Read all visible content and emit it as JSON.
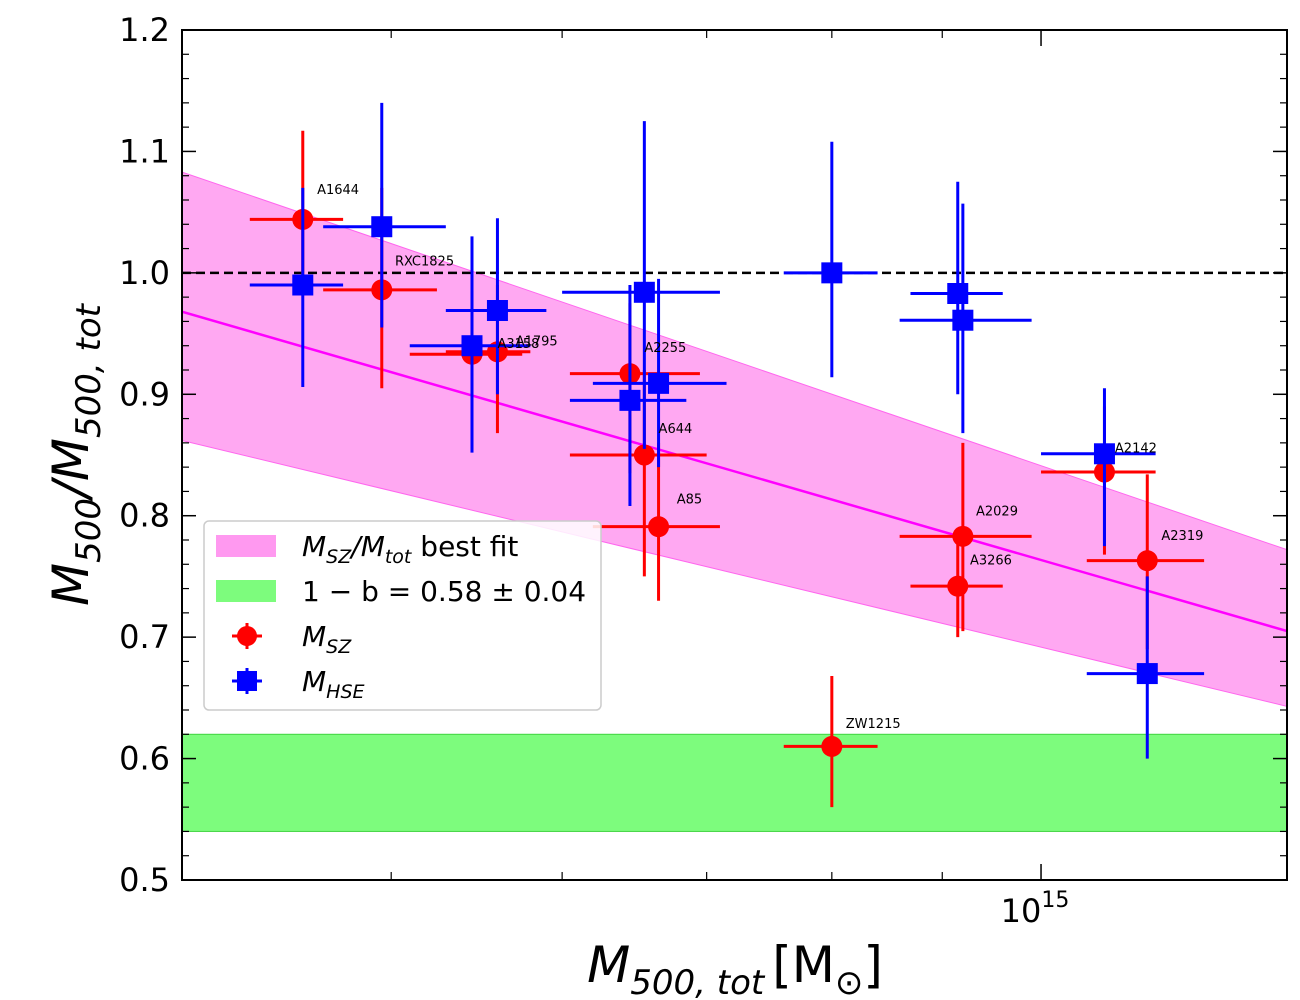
{
  "chart_data": {
    "type": "scatter",
    "xscale": "log",
    "xlim": [
      400000000000000.0,
      1300000000000000.0
    ],
    "ylim": [
      0.5,
      1.2
    ],
    "xlabel": {
      "main": "M",
      "sub": "500, tot",
      "unit_open": "[M",
      "unit_sym": "⊙",
      "unit_close": "]"
    },
    "ylabel": {
      "m1": "M",
      "s1": "500",
      "slash": "/M",
      "s2": "500, tot"
    },
    "y_ticks": [
      {
        "value": 0.5,
        "label": "0.5"
      },
      {
        "value": 0.6,
        "label": "0.6"
      },
      {
        "value": 0.7,
        "label": "0.7"
      },
      {
        "value": 0.8,
        "label": "0.8"
      },
      {
        "value": 0.9,
        "label": "0.9"
      },
      {
        "value": 1.0,
        "label": "1.0"
      },
      {
        "value": 1.1,
        "label": "1.1"
      },
      {
        "value": 1.2,
        "label": "1.2"
      }
    ],
    "x_tick": {
      "value": 1000000000000000.0,
      "base": "10",
      "exp": "15"
    },
    "reference_line": {
      "y": 1.0,
      "style": "dashed",
      "color": "#000000"
    },
    "bias_band": {
      "y_low": 0.54,
      "y_high": 0.62,
      "color": "#7dfc7d"
    },
    "fit": {
      "color": "#ff00ff",
      "band_color": "#ff99f0",
      "center": [
        [
          400000000000000.0,
          0.968
        ],
        [
          1300000000000000.0,
          0.705
        ]
      ],
      "upper": [
        [
          400000000000000.0,
          1.083
        ],
        [
          1300000000000000.0,
          0.772
        ]
      ],
      "lower": [
        [
          400000000000000.0,
          0.862
        ],
        [
          1300000000000000.0,
          0.643
        ]
      ]
    },
    "series": [
      {
        "name": "M_SZ",
        "color": "#ff0000",
        "marker": "circle",
        "points": [
          {
            "x": 455000000000000.0,
            "y": 1.044,
            "xlo": 430000000000000.0,
            "xhi": 475000000000000.0,
            "ylo": 0.985,
            "yhi": 1.117
          },
          {
            "x": 495000000000000.0,
            "y": 0.986,
            "xlo": 465000000000000.0,
            "xhi": 525000000000000.0,
            "ylo": 0.905,
            "yhi": 1.07
          },
          {
            "x": 545000000000000.0,
            "y": 0.933,
            "xlo": 510000000000000.0,
            "xhi": 575000000000000.0,
            "ylo": 0.855,
            "yhi": 0.985
          },
          {
            "x": 560000000000000.0,
            "y": 0.935,
            "xlo": 530000000000000.0,
            "xhi": 580000000000000.0,
            "ylo": 0.868,
            "yhi": 0.99
          },
          {
            "x": 645000000000000.0,
            "y": 0.917,
            "xlo": 605000000000000.0,
            "xhi": 695000000000000.0,
            "ylo": 0.835,
            "yhi": 0.975
          },
          {
            "x": 655000000000000.0,
            "y": 0.85,
            "xlo": 605000000000000.0,
            "xhi": 700000000000000.0,
            "ylo": 0.75,
            "yhi": 0.92
          },
          {
            "x": 665000000000000.0,
            "y": 0.791,
            "xlo": 620000000000000.0,
            "xhi": 710000000000000.0,
            "ylo": 0.73,
            "yhi": 0.86
          },
          {
            "x": 800000000000000.0,
            "y": 0.61,
            "xlo": 760000000000000.0,
            "xhi": 840000000000000.0,
            "ylo": 0.56,
            "yhi": 0.668
          },
          {
            "x": 920000000000000.0,
            "y": 0.783,
            "xlo": 860000000000000.0,
            "xhi": 990000000000000.0,
            "ylo": 0.705,
            "yhi": 0.86
          },
          {
            "x": 915000000000000.0,
            "y": 0.742,
            "xlo": 870000000000000.0,
            "xhi": 960000000000000.0,
            "ylo": 0.7,
            "yhi": 0.78
          },
          {
            "x": 1070000000000000.0,
            "y": 0.836,
            "xlo": 1000000000000000.0,
            "xhi": 1130000000000000.0,
            "ylo": 0.768,
            "yhi": 0.89
          },
          {
            "x": 1120000000000000.0,
            "y": 0.763,
            "xlo": 1050000000000000.0,
            "xhi": 1190000000000000.0,
            "ylo": 0.69,
            "yhi": 0.834
          }
        ]
      },
      {
        "name": "M_HSE",
        "color": "#0000ff",
        "marker": "square",
        "points": [
          {
            "x": 455000000000000.0,
            "y": 0.99,
            "xlo": 430000000000000.0,
            "xhi": 475000000000000.0,
            "ylo": 0.906,
            "yhi": 1.07
          },
          {
            "x": 495000000000000.0,
            "y": 1.038,
            "xlo": 465000000000000.0,
            "xhi": 530000000000000.0,
            "ylo": 0.955,
            "yhi": 1.14
          },
          {
            "x": 545000000000000.0,
            "y": 0.94,
            "xlo": 510000000000000.0,
            "xhi": 580000000000000.0,
            "ylo": 0.852,
            "yhi": 1.03
          },
          {
            "x": 560000000000000.0,
            "y": 0.969,
            "xlo": 530000000000000.0,
            "xhi": 590000000000000.0,
            "ylo": 0.9,
            "yhi": 1.045
          },
          {
            "x": 655000000000000.0,
            "y": 0.984,
            "xlo": 600000000000000.0,
            "xhi": 710000000000000.0,
            "ylo": 0.855,
            "yhi": 1.125
          },
          {
            "x": 645000000000000.0,
            "y": 0.895,
            "xlo": 605000000000000.0,
            "xhi": 685000000000000.0,
            "ylo": 0.808,
            "yhi": 0.99
          },
          {
            "x": 665000000000000.0,
            "y": 0.909,
            "xlo": 620000000000000.0,
            "xhi": 715000000000000.0,
            "ylo": 0.84,
            "yhi": 0.995
          },
          {
            "x": 800000000000000.0,
            "y": 1.0,
            "xlo": 760000000000000.0,
            "xhi": 840000000000000.0,
            "ylo": 0.914,
            "yhi": 1.108
          },
          {
            "x": 915000000000000.0,
            "y": 0.983,
            "xlo": 870000000000000.0,
            "xhi": 960000000000000.0,
            "ylo": 0.9,
            "yhi": 1.075
          },
          {
            "x": 920000000000000.0,
            "y": 0.961,
            "xlo": 860000000000000.0,
            "xhi": 990000000000000.0,
            "ylo": 0.868,
            "yhi": 1.057
          },
          {
            "x": 1070000000000000.0,
            "y": 0.851,
            "xlo": 1000000000000000.0,
            "xhi": 1130000000000000.0,
            "ylo": 0.775,
            "yhi": 0.905
          },
          {
            "x": 1120000000000000.0,
            "y": 0.67,
            "xlo": 1050000000000000.0,
            "xhi": 1190000000000000.0,
            "ylo": 0.6,
            "yhi": 0.75
          }
        ]
      }
    ],
    "annotations": [
      {
        "text": "A1644",
        "x": 462000000000000.0,
        "y": 1.065
      },
      {
        "text": "RXC1825",
        "x": 502000000000000.0,
        "y": 1.006
      },
      {
        "text": "A3158",
        "x": 560000000000000.0,
        "y": 0.938
      },
      {
        "text": "A1795",
        "x": 571000000000000.0,
        "y": 0.94
      },
      {
        "text": "A2255",
        "x": 655000000000000.0,
        "y": 0.935
      },
      {
        "text": "A644",
        "x": 665000000000000.0,
        "y": 0.868
      },
      {
        "text": "A85",
        "x": 678000000000000.0,
        "y": 0.81
      },
      {
        "text": "ZW1215",
        "x": 812000000000000.0,
        "y": 0.625
      },
      {
        "text": "A2029",
        "x": 933000000000000.0,
        "y": 0.8
      },
      {
        "text": "A3266",
        "x": 927000000000000.0,
        "y": 0.76
      },
      {
        "text": "A2142",
        "x": 1082000000000000.0,
        "y": 0.852
      },
      {
        "text": "A2319",
        "x": 1137000000000000.0,
        "y": 0.78
      }
    ],
    "legend": {
      "placement": "center-left",
      "items": [
        {
          "key": "fit",
          "swatch_color": "#ff99f0",
          "kind": "patch",
          "m": "M",
          "sub1": "SZ",
          "sep": "/",
          "m2": "M",
          "sub2": "tot",
          "suffix": " best fit"
        },
        {
          "key": "bias",
          "swatch_color": "#7dfc7d",
          "kind": "patch",
          "text": "1 − b = 0.58 ± 0.04"
        },
        {
          "key": "sz",
          "swatch_color": "#ff0000",
          "kind": "circle",
          "m": "M",
          "sub1": "SZ"
        },
        {
          "key": "hse",
          "swatch_color": "#0000ff",
          "kind": "square",
          "m": "M",
          "sub1": "HSE"
        }
      ]
    }
  }
}
